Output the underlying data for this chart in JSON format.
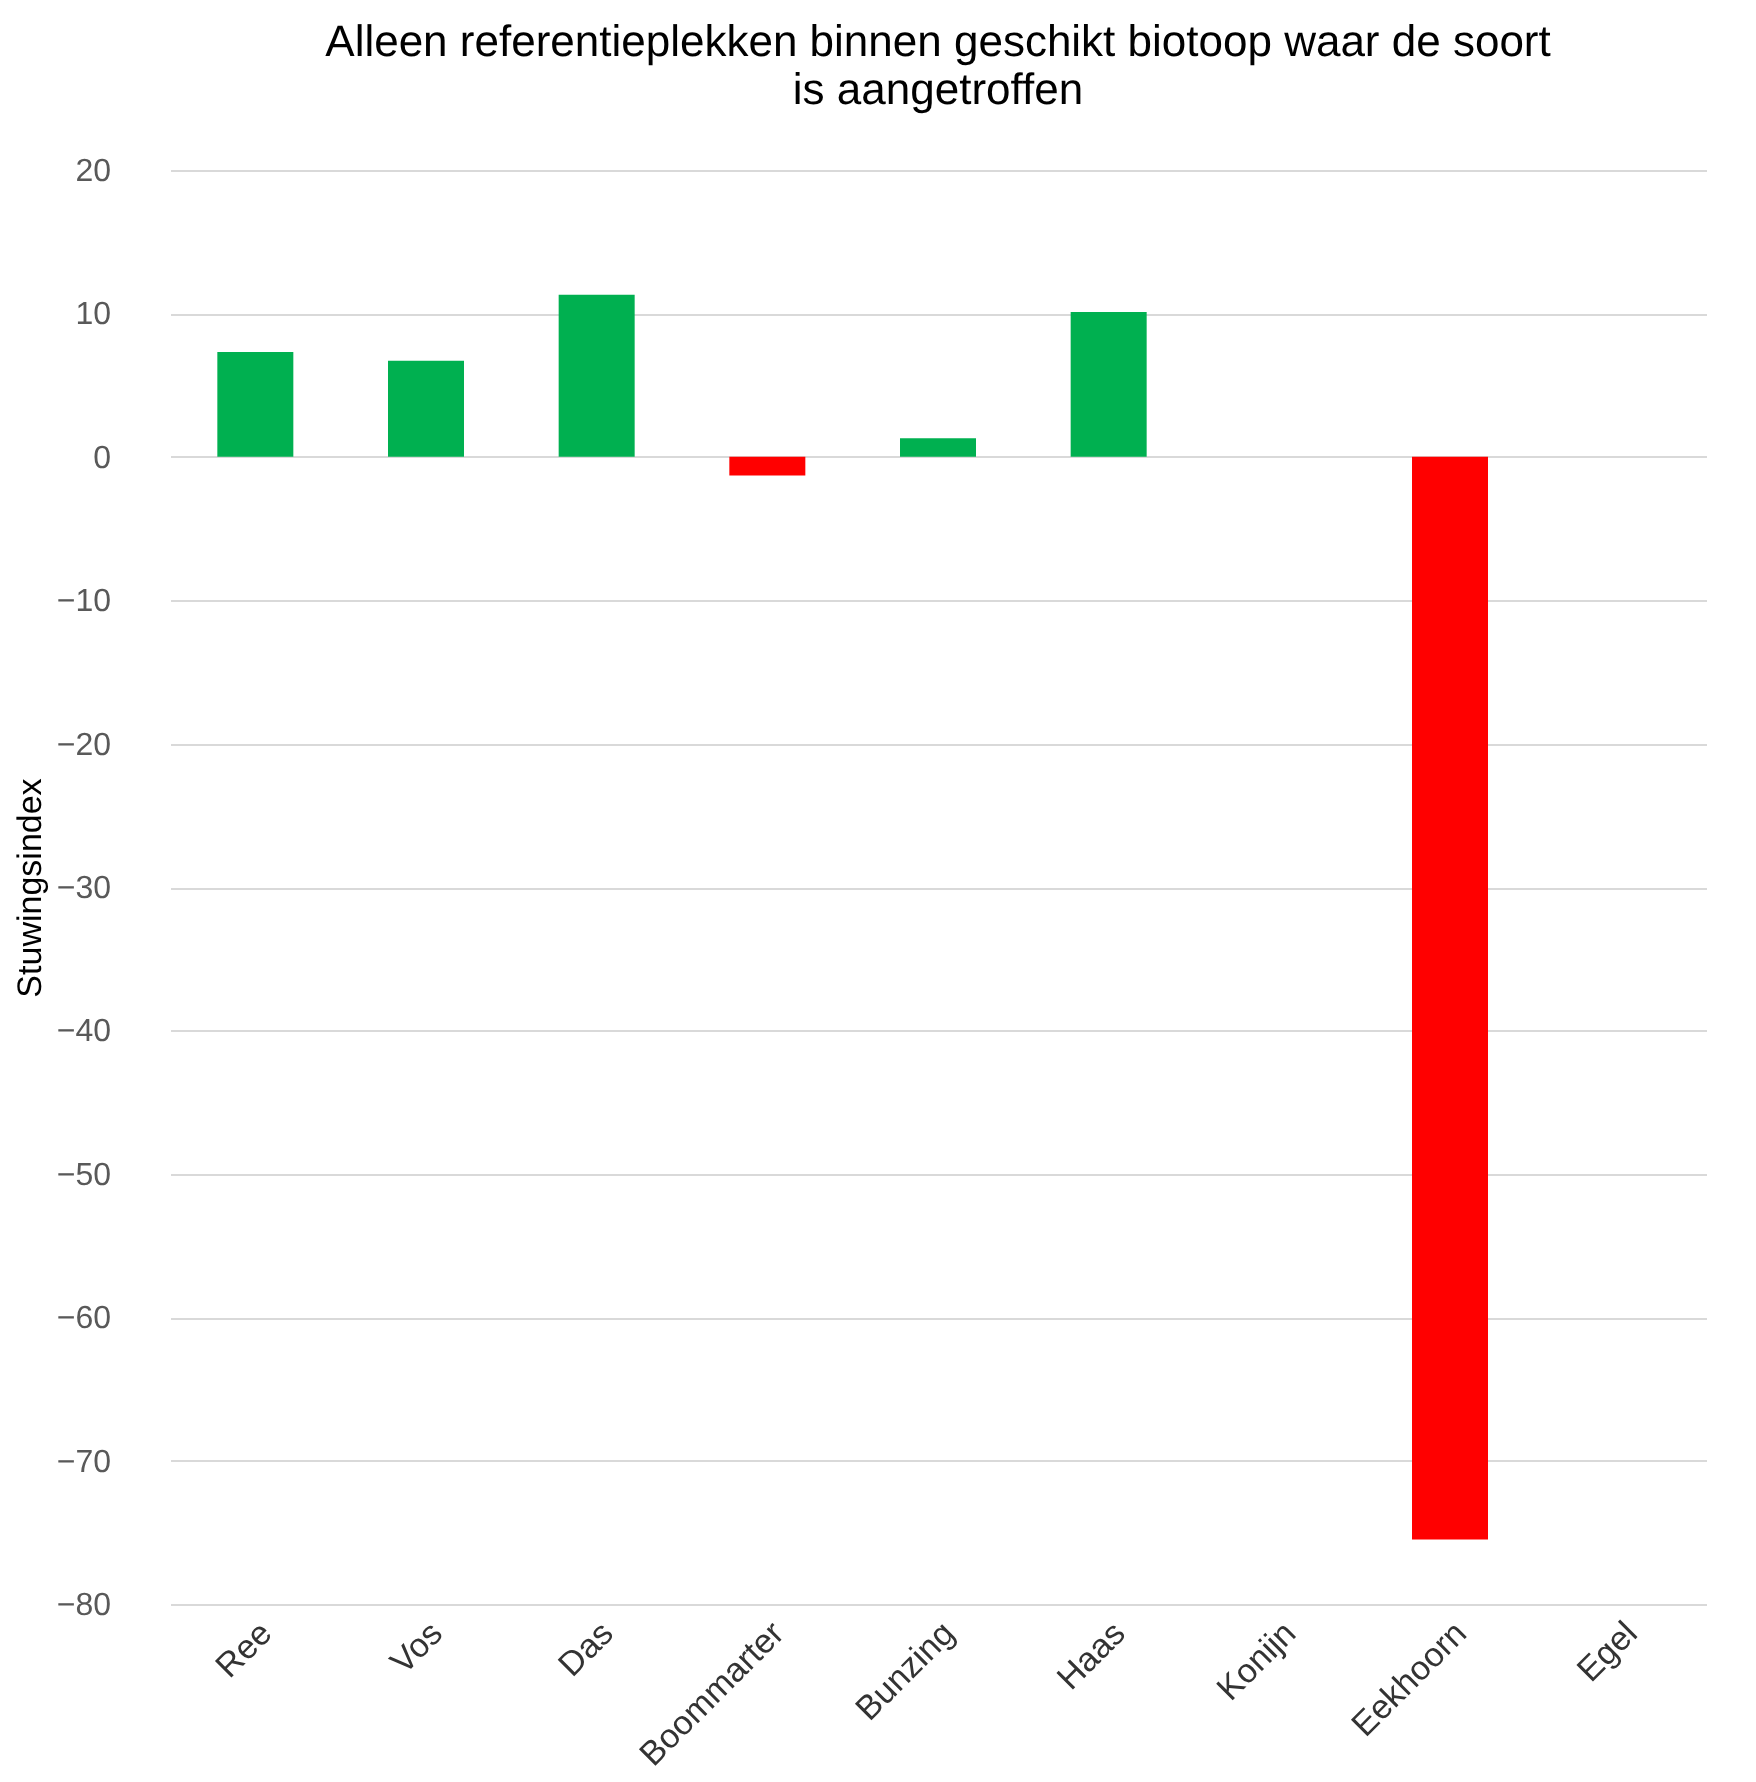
{
  "chart_data": {
    "type": "bar",
    "title": "Alleen referentieplekken binnen geschikt biotoop waar de soort is aangetroffen",
    "ylabel": "Stuwingsindex",
    "categories": [
      "Ree",
      "Vos",
      "Das",
      "Boommarter",
      "Bunzing",
      "Haas",
      "Konijn",
      "Eekhoorn",
      "Egel"
    ],
    "values": [
      7.3,
      6.7,
      11.3,
      -1.3,
      1.3,
      10.1,
      0,
      -75.5,
      0
    ],
    "colors": [
      "#00b050",
      "#00b050",
      "#00b050",
      "#ff0000",
      "#00b050",
      "#00b050",
      "#00b050",
      "#ff0000",
      "#00b050"
    ],
    "ylim": [
      -80,
      20
    ],
    "yticks": [
      -80,
      -70,
      -60,
      -50,
      -40,
      -30,
      -20,
      -10,
      0,
      10,
      20
    ],
    "grid": "y"
  }
}
